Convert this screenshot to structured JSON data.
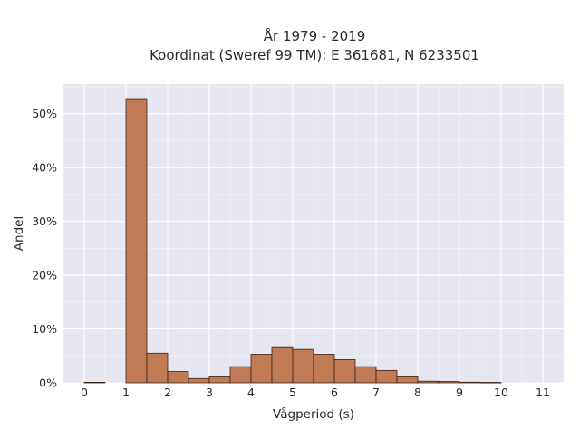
{
  "chart_data": {
    "type": "bar",
    "title_lines": [
      "År 1979 - 2019",
      "Koordinat (Sweref 99 TM): E 361681, N 6233501"
    ],
    "xlabel": "Vågperiod (s)",
    "ylabel": "Andel",
    "x_ticks": [
      0,
      1,
      2,
      3,
      4,
      5,
      6,
      7,
      8,
      9,
      10,
      11
    ],
    "y_ticks": [
      "0%",
      "10%",
      "20%",
      "30%",
      "40%",
      "50%"
    ],
    "y_tick_values": [
      0,
      10,
      20,
      30,
      40,
      50
    ],
    "xlim": [
      -0.5,
      11.5
    ],
    "ylim": [
      0,
      55.5
    ],
    "bin_width": 0.5,
    "bins": [
      {
        "x0": 0.0,
        "value": 0.1
      },
      {
        "x0": 1.0,
        "value": 52.8
      },
      {
        "x0": 1.5,
        "value": 5.5
      },
      {
        "x0": 2.0,
        "value": 2.1
      },
      {
        "x0": 2.5,
        "value": 0.8
      },
      {
        "x0": 3.0,
        "value": 1.1
      },
      {
        "x0": 3.5,
        "value": 3.0
      },
      {
        "x0": 4.0,
        "value": 5.3
      },
      {
        "x0": 4.5,
        "value": 6.7
      },
      {
        "x0": 5.0,
        "value": 6.2
      },
      {
        "x0": 5.5,
        "value": 5.3
      },
      {
        "x0": 6.0,
        "value": 4.3
      },
      {
        "x0": 6.5,
        "value": 3.0
      },
      {
        "x0": 7.0,
        "value": 2.3
      },
      {
        "x0": 7.5,
        "value": 1.1
      },
      {
        "x0": 8.0,
        "value": 0.3
      },
      {
        "x0": 8.5,
        "value": 0.25
      },
      {
        "x0": 9.0,
        "value": 0.12
      },
      {
        "x0": 9.5,
        "value": 0.08
      }
    ],
    "grid": true,
    "colors": {
      "bar_fill": "#c07a54",
      "bar_stroke": "#3a2518",
      "plot_background": "#e5e6ef",
      "grid": "#ffffff"
    }
  }
}
